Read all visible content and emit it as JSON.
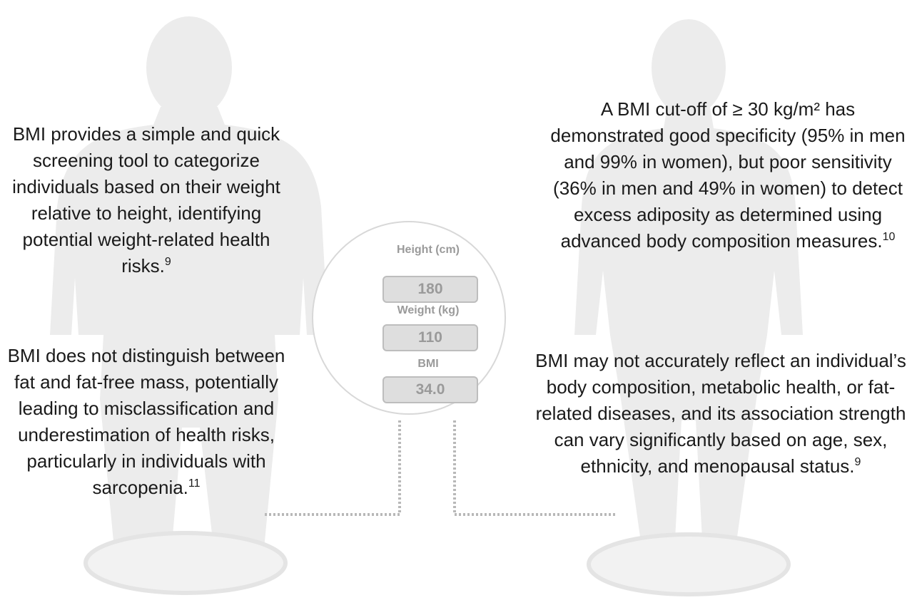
{
  "left": {
    "top": {
      "text": "BMI provides a simple and quick screening tool to categorize individuals based on their weight relative to height, identifying potential weight-related health risks.",
      "ref": "9"
    },
    "bottom": {
      "text": "BMI does not distinguish between fat and fat-free mass, potentially leading to misclassification and underestimation of health risks, particularly in individuals with sarcopenia.",
      "ref": "11"
    }
  },
  "right": {
    "top": {
      "text": "A BMI cut-off of ≥ 30 kg/m² has demonstrated good specificity (95% in men and 99% in women), but poor sensitivity (36% in men and 49% in women) to detect excess adiposity as determined using advanced body composition measures.",
      "ref": "10"
    },
    "bottom": {
      "text": "BMI may not accurately reflect an individual’s body composition, metabolic health, or fat-related diseases, and its association strength can vary significantly based on age, sex, ethnicity, and menopausal status.",
      "ref": "9"
    }
  },
  "calculator": {
    "fields": [
      {
        "label": "Height (cm)",
        "value": "180"
      },
      {
        "label": "Weight (kg)",
        "value": "110"
      },
      {
        "label": "BMI",
        "value": "34.0"
      }
    ]
  }
}
